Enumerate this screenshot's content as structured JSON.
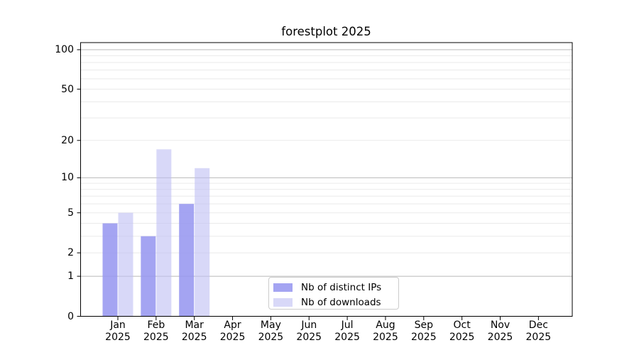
{
  "title": "forestplot 2025",
  "chart_data": {
    "type": "bar",
    "title": "forestplot 2025",
    "categories": [
      "Jan",
      "Feb",
      "Mar",
      "Apr",
      "May",
      "Jun",
      "Jul",
      "Aug",
      "Sep",
      "Oct",
      "Nov",
      "Dec"
    ],
    "category_year": "2025",
    "series": [
      {
        "name": "Nb of distinct IPs",
        "color": "#a4a4f0",
        "fill": "rgba(148,148,240,0.85)",
        "values": [
          4,
          3,
          6,
          0,
          0,
          0,
          0,
          0,
          0,
          0,
          0,
          0
        ]
      },
      {
        "name": "Nb of downloads",
        "color": "#d8d8f8",
        "fill": "rgba(192,192,244,0.62)",
        "values": [
          5,
          17,
          12,
          0,
          0,
          0,
          0,
          0,
          0,
          0,
          0,
          0
        ]
      }
    ],
    "yticks": [
      0,
      1,
      2,
      5,
      10,
      20,
      50,
      100
    ],
    "ylabel": "",
    "xlabel": "",
    "scale": "log(value+1)",
    "ylim": [
      0,
      113
    ],
    "grid": "both",
    "grid_major_values": [
      1,
      10,
      100
    ],
    "grid_minor_values": [
      2,
      3,
      4,
      5,
      6,
      7,
      8,
      9,
      20,
      30,
      40,
      50,
      60,
      70,
      80,
      90
    ],
    "legend_position": "lower center"
  }
}
